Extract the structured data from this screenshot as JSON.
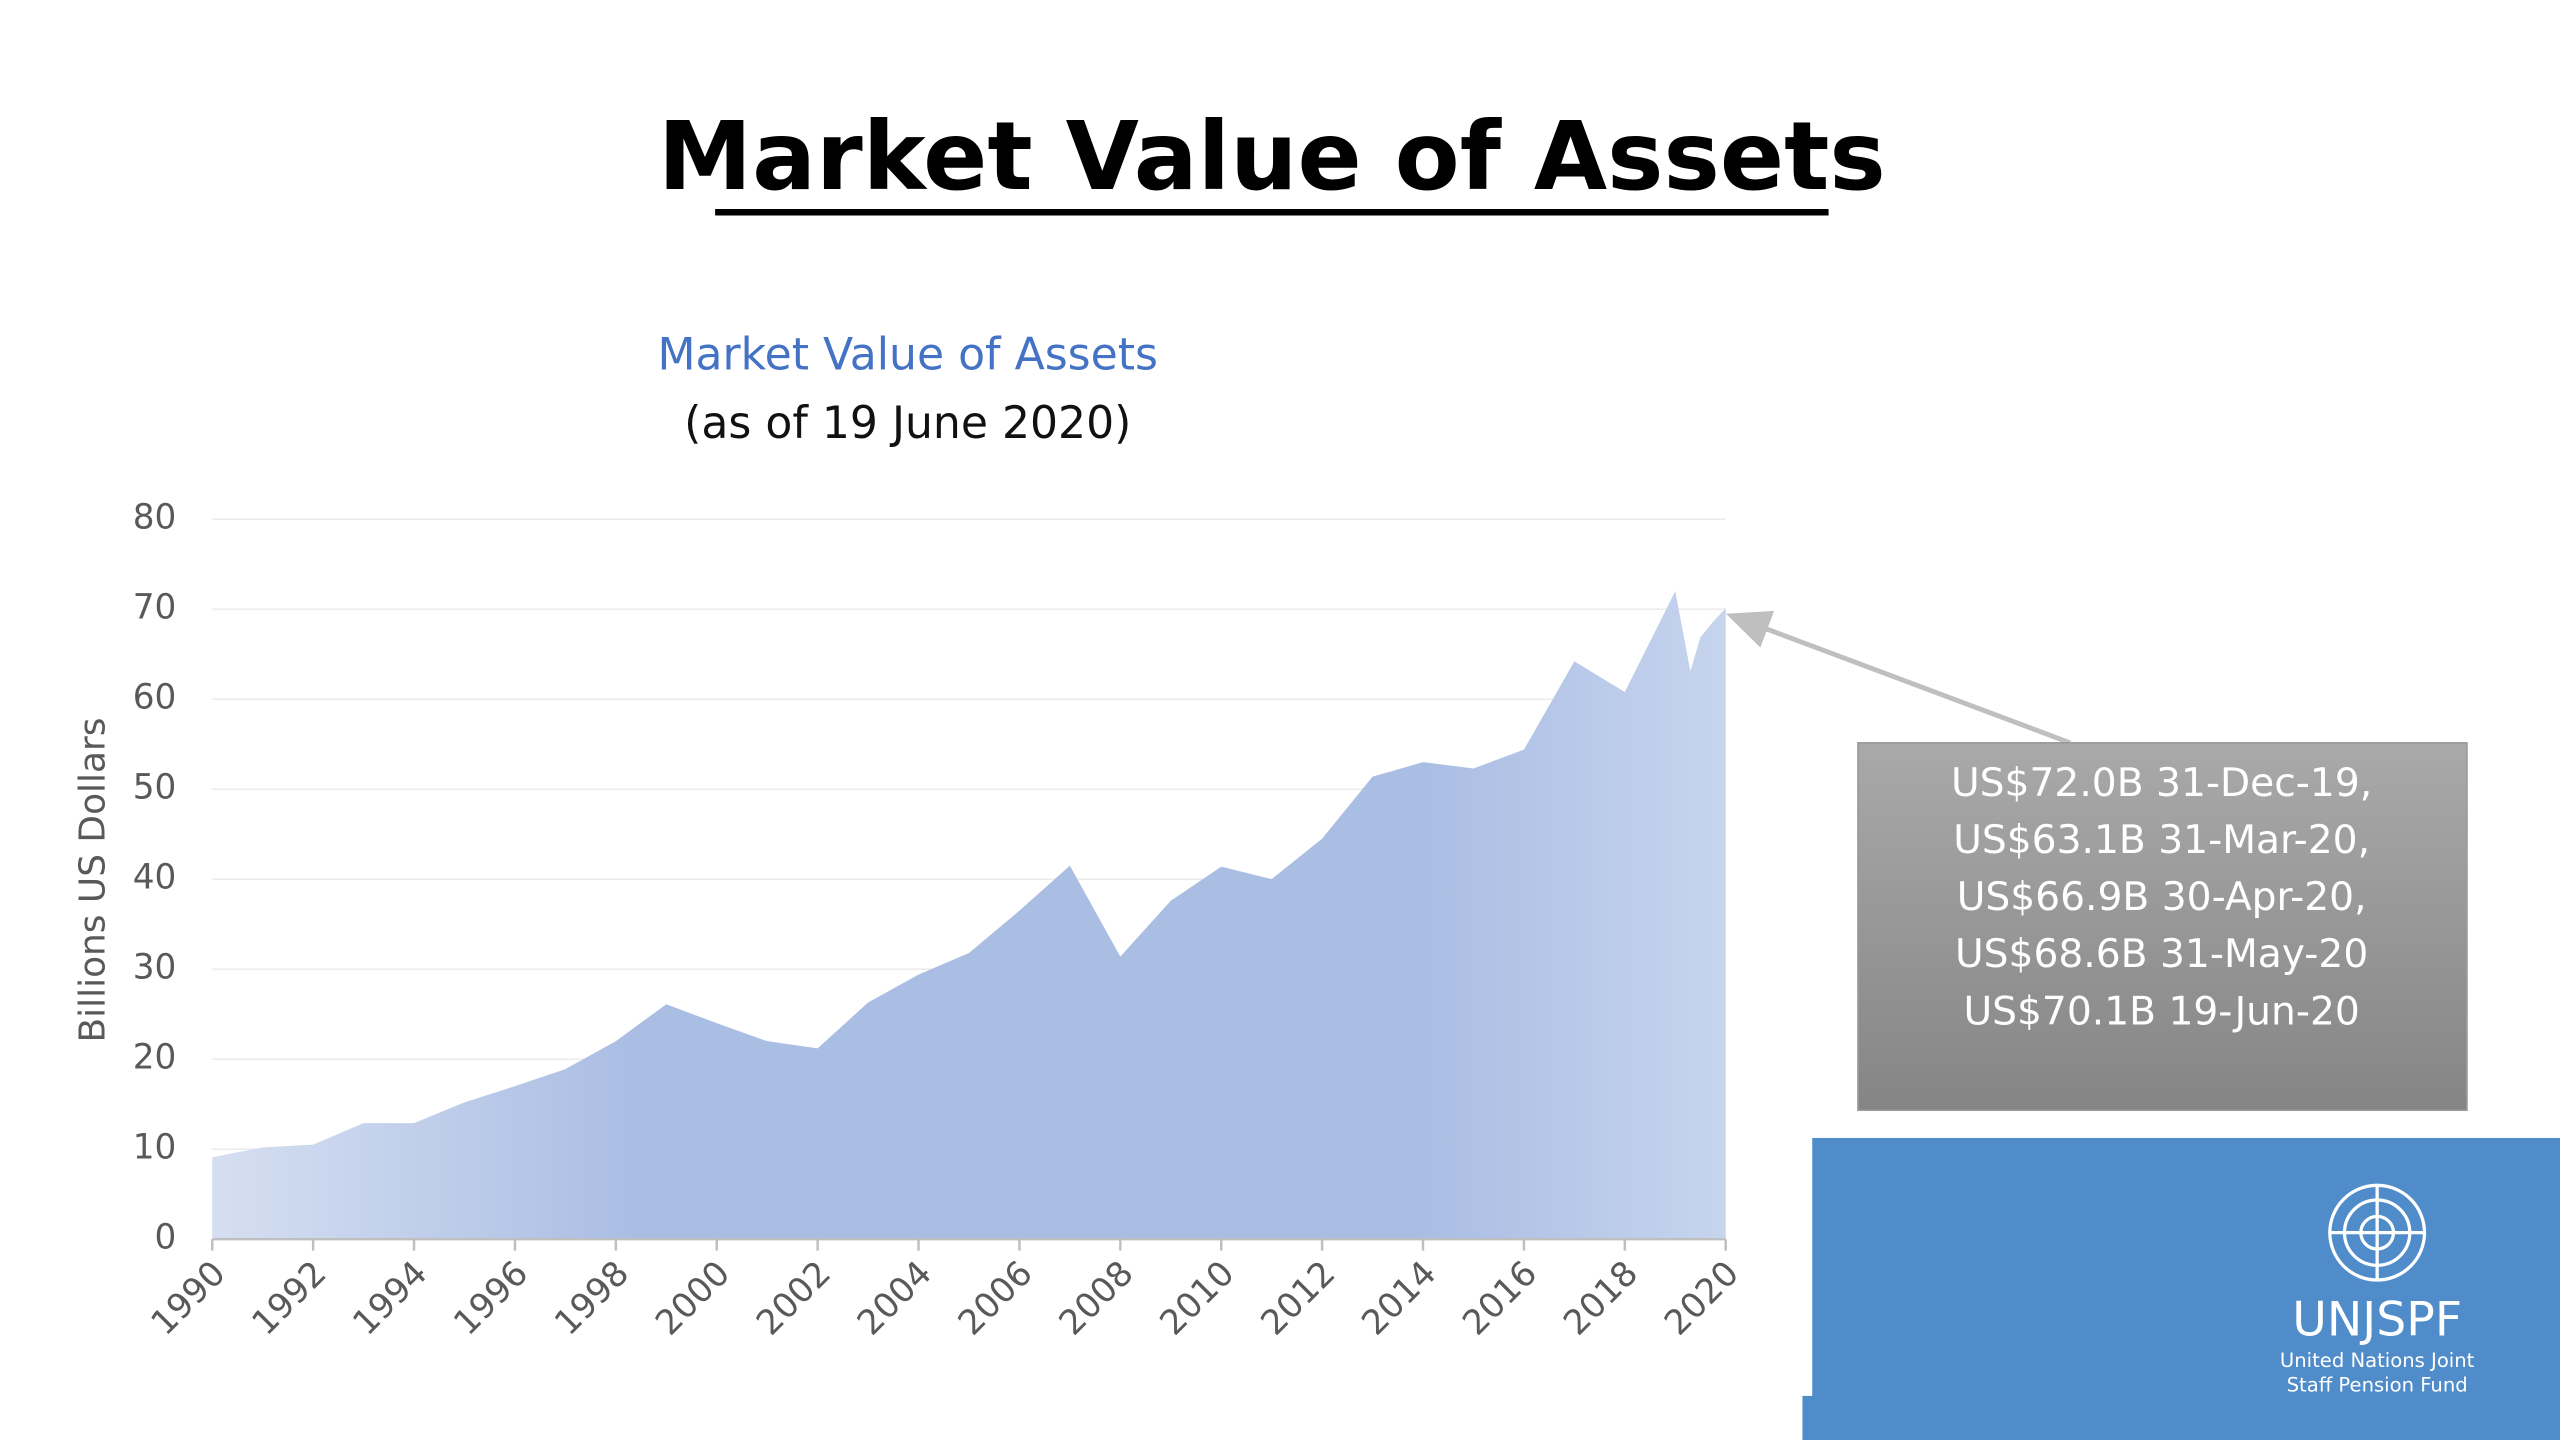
{
  "slide_title": "Market Value of Assets",
  "chart_data": {
    "type": "area",
    "title": "Market Value of Assets",
    "subtitle": "(as of 19 June 2020)",
    "y_label": "Billions US Dollars",
    "x": [
      1990,
      1991,
      1992,
      1993,
      1994,
      1995,
      1996,
      1997,
      1998,
      1999,
      2000,
      2001,
      2002,
      2003,
      2004,
      2005,
      2006,
      2007,
      2008,
      2009,
      2010,
      2011,
      2012,
      2013,
      2014,
      2015,
      2016,
      2017,
      2018,
      2019,
      2019.3,
      2019.5,
      2019.75,
      2020
    ],
    "values": [
      9.1,
      10.2,
      10.5,
      12.9,
      12.9,
      15.2,
      17,
      18.9,
      22,
      26.1,
      24,
      22,
      21.2,
      26.3,
      29.4,
      31.8,
      36.5,
      41.5,
      31.4,
      37.6,
      41.4,
      40,
      44.5,
      51.4,
      53,
      52.3,
      54.4,
      64.2,
      60.8,
      72.0,
      63.1,
      66.9,
      68.6,
      70.1
    ],
    "color": "#aabde3",
    "xlim": [
      1990,
      2020
    ],
    "xticks": [
      1990,
      1992,
      1994,
      1996,
      1998,
      2000,
      2002,
      2004,
      2006,
      2008,
      2010,
      2012,
      2014,
      2016,
      2018,
      2020
    ],
    "ylim": [
      0,
      80
    ],
    "yticks": [
      0,
      10,
      20,
      30,
      40,
      50,
      60,
      70,
      80
    ],
    "grid": true,
    "annotation": {
      "lines": [
        "US$72.0B 31-Dec-19,",
        "US$63.1B 31-Mar-20,",
        "US$66.9B 30-Apr-20,",
        "US$68.6B 31-May-20",
        "US$70.1B 19-Jun-20"
      ]
    }
  },
  "logo": {
    "name": "UNJSPF",
    "lines": [
      "United Nations Joint",
      "Staff Pension Fund"
    ]
  }
}
